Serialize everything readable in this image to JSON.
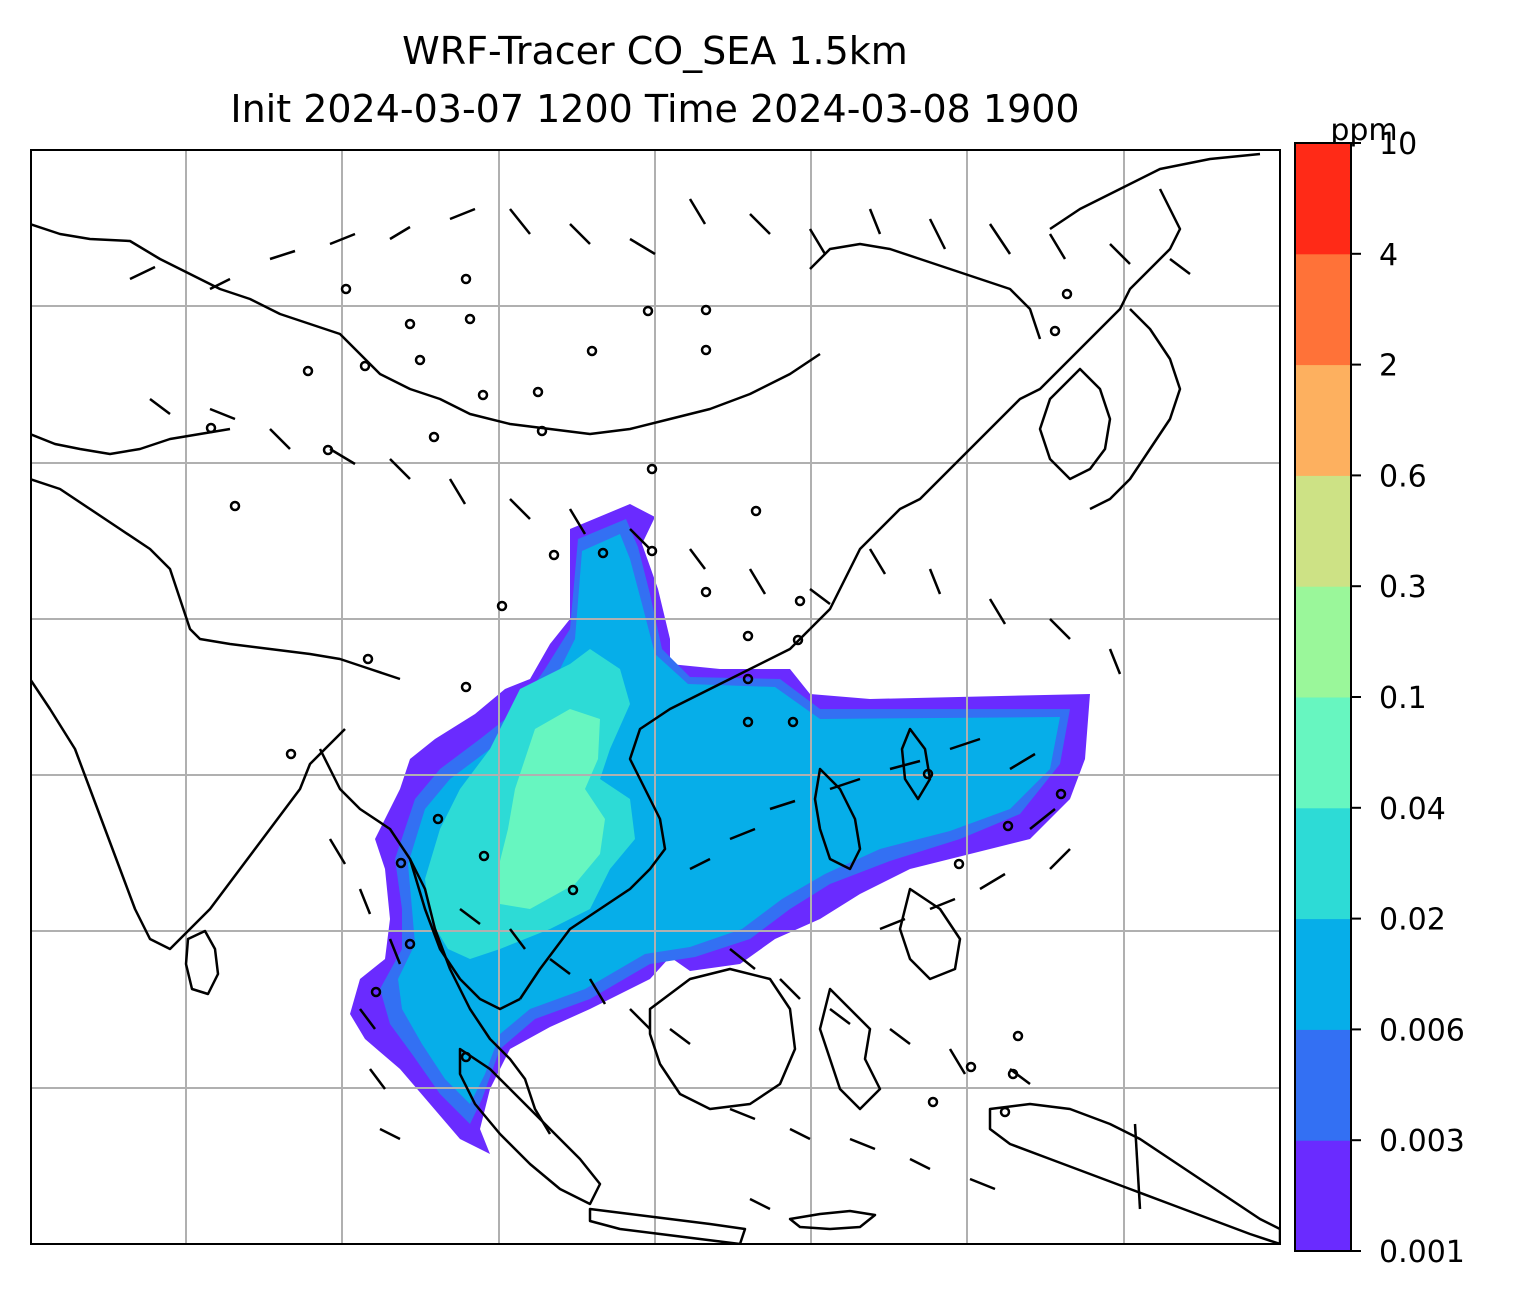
{
  "title_line1": "WRF-Tracer CO_SEA 1.5km",
  "title_line2": "Init 2024-03-07 1200 Time 2024-03-08 1900",
  "colorbar": {
    "unit": "ppm",
    "levels": [
      "0.001",
      "0.003",
      "0.006",
      "0.02",
      "0.04",
      "0.1",
      "0.3",
      "0.6",
      "2",
      "4",
      "10"
    ],
    "colors": [
      "#6a2bff",
      "#3370f3",
      "#06aee9",
      "#2ddbd6",
      "#67f6c0",
      "#9af79a",
      "#cde285",
      "#fdb05f",
      "#ff7238",
      "#ff2a17"
    ]
  },
  "map": {
    "grid_lines": true,
    "field": "CO tracer concentration",
    "overlay": "wind barbs"
  }
}
